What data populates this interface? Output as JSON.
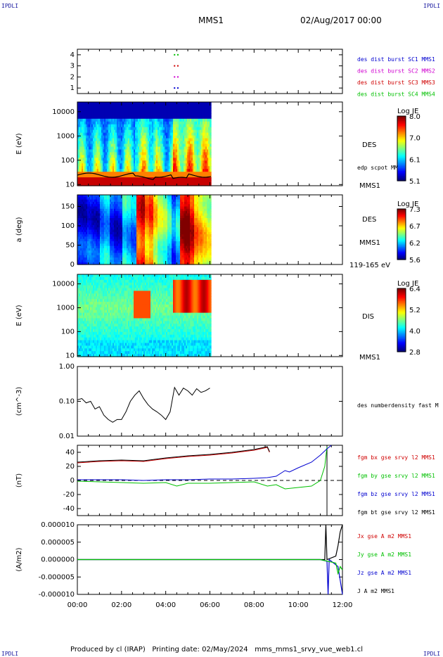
{
  "header": {
    "corner_label": "IPDLI",
    "title": "MMS1",
    "datetime": "02/Aug/2017 00:00"
  },
  "footer": {
    "text": "Produced by cl (IRAP)   Printing date: 02/May/2024   mms_mms1_srvy_vue_web1.cl"
  },
  "colors": {
    "black": "#000000",
    "red": "#d00000",
    "green": "#00c000",
    "blue": "#0000d0",
    "magenta": "#d000d0"
  },
  "chart_data": [
    {
      "id": "burst",
      "type": "scatter",
      "y_ticks": [
        "1",
        "2",
        "3",
        "4"
      ],
      "ylim": [
        0.5,
        4.5
      ],
      "legend": [
        {
          "text": "des dist burst SC1 MMS1",
          "color": "#0000d0"
        },
        {
          "text": "des dist burst SC2 MMS2",
          "color": "#d000d0"
        },
        {
          "text": "des dist burst SC3 MMS3",
          "color": "#d00000"
        },
        {
          "text": "des dist burst SC4 MMS4",
          "color": "#00c000"
        }
      ],
      "points": [
        {
          "x": 4.4,
          "y": 1,
          "color": "#0000d0"
        },
        {
          "x": 4.55,
          "y": 1,
          "color": "#0000d0"
        },
        {
          "x": 4.4,
          "y": 2,
          "color": "#d000d0"
        },
        {
          "x": 4.55,
          "y": 2,
          "color": "#d000d0"
        },
        {
          "x": 4.4,
          "y": 3,
          "color": "#d00000"
        },
        {
          "x": 4.55,
          "y": 3,
          "color": "#d00000"
        },
        {
          "x": 4.4,
          "y": 4,
          "color": "#00c000"
        },
        {
          "x": 4.55,
          "y": 4,
          "color": "#00c000"
        }
      ]
    },
    {
      "id": "des_energy",
      "type": "heatmap",
      "ylabel": "E (eV)",
      "y_ticks": [
        "10",
        "100",
        "1000",
        "10000"
      ],
      "side_label": "DES",
      "overlay_label": "edp scpot MMS1",
      "spacecraft_label": "MMS1",
      "colorbar": {
        "title": "Log JE",
        "ticks": [
          "8.0",
          "7.0",
          "6.1",
          "5.1"
        ]
      }
    },
    {
      "id": "des_pitch",
      "type": "heatmap",
      "ylabel": "a (deg)",
      "y_ticks": [
        "0",
        "50",
        "100",
        "150"
      ],
      "side_label": "DES",
      "spacecraft_label": "MMS1",
      "energy_label": "119-165 eV",
      "colorbar": {
        "title": "Log JE",
        "ticks": [
          "7.3",
          "6.7",
          "6.2",
          "5.6"
        ]
      }
    },
    {
      "id": "dis_energy",
      "type": "heatmap",
      "ylabel": "E (eV)",
      "y_ticks": [
        "10",
        "100",
        "1000",
        "10000"
      ],
      "side_label": "DIS",
      "spacecraft_label": "MMS1",
      "colorbar": {
        "title": "Log JE",
        "ticks": [
          "6.4",
          "5.2",
          "4.0",
          "2.8"
        ]
      }
    },
    {
      "id": "density",
      "type": "line",
      "ylabel": "(cm^-3)",
      "y_ticks": [
        "0.01",
        "0.10",
        "1.00"
      ],
      "legend": [
        {
          "text": "des numberdensity fast M",
          "color": "#000000"
        }
      ],
      "series": [
        {
          "x": [
            0.0,
            0.2,
            0.4,
            0.6,
            0.8,
            1.0,
            1.2,
            1.4,
            1.6,
            1.8,
            2.0,
            2.2,
            2.4,
            2.6,
            2.8,
            3.0,
            3.2,
            3.4,
            3.6,
            3.8,
            4.0,
            4.2,
            4.4,
            4.6,
            4.8,
            5.0,
            5.2,
            5.4,
            5.6,
            5.8,
            6.0
          ],
          "values": [
            0.11,
            0.12,
            0.09,
            0.1,
            0.06,
            0.07,
            0.04,
            0.03,
            0.025,
            0.03,
            0.03,
            0.05,
            0.1,
            0.15,
            0.2,
            0.12,
            0.08,
            0.06,
            0.05,
            0.04,
            0.03,
            0.05,
            0.25,
            0.15,
            0.24,
            0.2,
            0.15,
            0.23,
            0.18,
            0.2,
            0.24
          ]
        }
      ]
    },
    {
      "id": "fgm",
      "type": "line",
      "ylabel": "(nT)",
      "y_ticks": [
        "-40",
        "-20",
        "0",
        "20",
        "40"
      ],
      "legend": [
        {
          "text": "fgm bx gse srvy l2 MMS1",
          "color": "#d00000"
        },
        {
          "text": "fgm by gse srvy l2 MMS1",
          "color": "#00c000"
        },
        {
          "text": "fgm bz gse srvy l2 MMS1",
          "color": "#0000d0"
        },
        {
          "text": "fgm bt gse srvy l2 MMS1",
          "color": "#000000"
        }
      ],
      "series": [
        {
          "name": "bx",
          "x": [
            0,
            1,
            2,
            3,
            4,
            5,
            6,
            7,
            8,
            8.6,
            8.7
          ],
          "values": [
            25,
            27,
            28,
            27,
            31,
            34,
            36,
            39,
            43,
            47,
            40
          ]
        },
        {
          "name": "bt",
          "x": [
            0,
            1,
            2,
            3,
            4,
            5,
            6,
            7,
            8,
            8.6,
            8.7
          ],
          "values": [
            26,
            28,
            29,
            28,
            32,
            35,
            37,
            40,
            44,
            48,
            41
          ]
        },
        {
          "name": "by",
          "x": [
            0,
            1,
            2,
            3,
            4,
            4.5,
            5,
            6,
            7,
            8,
            8.6,
            9,
            9.4,
            10,
            10.6,
            11,
            11.2,
            11.3
          ],
          "values": [
            -1,
            -2,
            -3,
            -4,
            -3,
            -8,
            -4,
            -4,
            -3,
            -2,
            -8,
            -6,
            -12,
            -10,
            -8,
            0,
            20,
            48
          ]
        },
        {
          "name": "bz",
          "x": [
            0,
            1,
            2,
            3,
            4,
            5,
            6,
            7,
            8,
            8.6,
            9,
            9.4,
            9.6,
            10,
            10.6,
            11,
            11.3,
            11.5
          ],
          "values": [
            1,
            1,
            1,
            0,
            1,
            1,
            2,
            2,
            3,
            4,
            6,
            14,
            12,
            18,
            26,
            36,
            45,
            55
          ]
        }
      ]
    },
    {
      "id": "current",
      "type": "line",
      "ylabel": "(A/m2)",
      "y_ticks": [
        "-0.000010",
        "-0.000005",
        "0.000000",
        "0.000005",
        "0.000010"
      ],
      "x_ticks": [
        "00:00",
        "02:00",
        "04:00",
        "06:00",
        "08:00",
        "10:00",
        "12:00"
      ],
      "legend": [
        {
          "text": "Jx gse A m2 MMS1",
          "color": "#d00000"
        },
        {
          "text": "Jy gse A m2 MMS1",
          "color": "#00c000"
        },
        {
          "text": "Jz gse A m2 MMS1",
          "color": "#0000d0"
        },
        {
          "text": "J A m2 MMS1",
          "color": "#000000"
        }
      ],
      "series": [
        {
          "name": "J",
          "x": [
            0,
            11.2,
            11.25,
            11.3,
            11.7,
            11.8,
            11.9,
            12
          ],
          "values": [
            0,
            0,
            10,
            0,
            1,
            4,
            8,
            10
          ]
        },
        {
          "name": "Jz",
          "x": [
            0,
            11.0,
            11.3,
            11.35,
            11.4,
            11.8,
            11.9,
            12
          ],
          "values": [
            0,
            0,
            -0.5,
            -10,
            0,
            -2,
            -6,
            -10
          ]
        },
        {
          "name": "Jy",
          "x": [
            0,
            11.0,
            11.7,
            11.8,
            11.9,
            12
          ],
          "values": [
            0,
            0,
            -1,
            -4,
            -2,
            -3
          ]
        }
      ]
    }
  ]
}
